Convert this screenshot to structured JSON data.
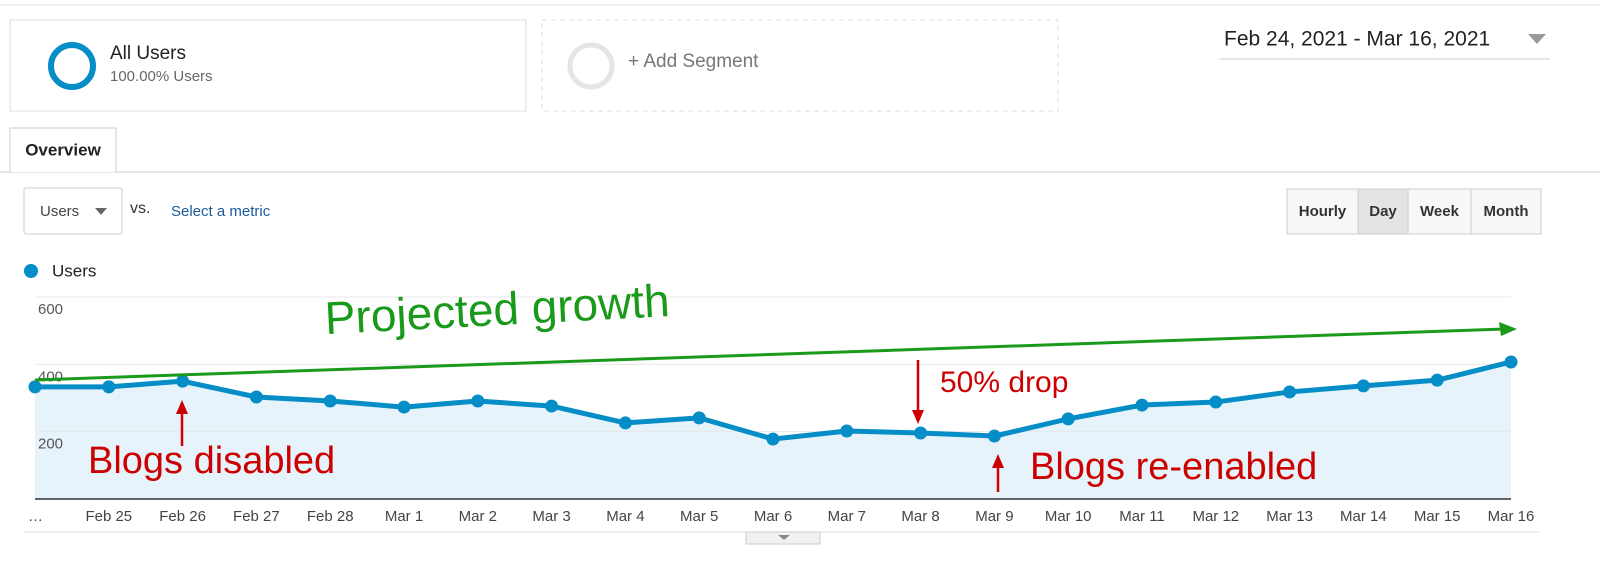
{
  "segments": [
    {
      "name": "All Users",
      "detail": "100.00% Users"
    },
    {
      "name": "+ Add Segment"
    }
  ],
  "date_range": "Feb 24, 2021 - Mar 16, 2021",
  "tabs": [
    "Overview"
  ],
  "metric_selector": {
    "metric": "Users",
    "vs": "vs.",
    "link": "Select a metric"
  },
  "granularity": {
    "options": [
      "Hourly",
      "Day",
      "Week",
      "Month"
    ],
    "selected": 1
  },
  "chart_data": {
    "type": "line",
    "categories": [
      "…",
      "Feb 25",
      "Feb 26",
      "Feb 27",
      "Feb 28",
      "Mar 1",
      "Mar 2",
      "Mar 3",
      "Mar 4",
      "Mar 5",
      "Mar 6",
      "Mar 7",
      "Mar 8",
      "Mar 9",
      "Mar 10",
      "Mar 11",
      "Mar 12",
      "Mar 13",
      "Mar 14",
      "Mar 15",
      "Mar 16"
    ],
    "series": [
      {
        "name": "Users",
        "color": "#058dc7",
        "values": [
          333,
          333,
          350,
          303,
          291,
          273,
          291,
          276,
          226,
          241,
          178,
          202,
          196,
          187,
          238,
          279,
          288,
          318,
          336,
          353,
          407
        ]
      }
    ],
    "ylim": [
      0,
      600
    ],
    "yticks": [
      200,
      400,
      600
    ],
    "grid": true,
    "annotations": [
      {
        "text": "Projected growth",
        "color": "#1a9a1a"
      },
      {
        "text": "50% drop",
        "color": "#cc0000"
      },
      {
        "text": "Blogs disabled",
        "color": "#cc0000"
      },
      {
        "text": "Blogs re-enabled",
        "color": "#cc0000"
      }
    ]
  }
}
